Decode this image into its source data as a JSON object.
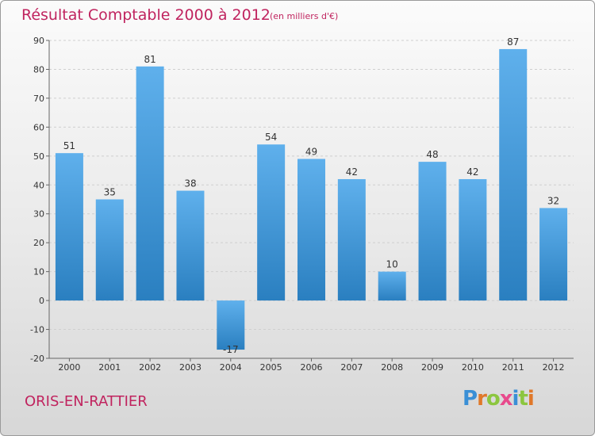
{
  "header": {
    "title": "Résultat Comptable 2000 à 2012",
    "subtitle": "(en milliers d'€)"
  },
  "footer": {
    "commune": "ORIS-EN-RATTIER",
    "logo": {
      "letters": [
        "P",
        "r",
        "o",
        "x",
        "i",
        "t",
        "i"
      ],
      "colors": [
        "#3a8fd6",
        "#e0782a",
        "#8cc63f",
        "#e84a8c",
        "#3a8fd6",
        "#8cc63f",
        "#e0782a"
      ]
    }
  },
  "colors": {
    "accent": "#c0245f",
    "bar_light": "#5fb0ec",
    "bar_dark": "#2a7fc0",
    "grid": "#cfcfcf",
    "axis": "#666666"
  },
  "chart_data": {
    "type": "bar",
    "title": "Résultat Comptable 2000 à 2012",
    "xlabel": "",
    "ylabel": "",
    "categories": [
      "2000",
      "2001",
      "2002",
      "2003",
      "2004",
      "2005",
      "2006",
      "2007",
      "2008",
      "2009",
      "2010",
      "2011",
      "2012"
    ],
    "values": [
      51,
      35,
      81,
      38,
      -17,
      54,
      49,
      42,
      10,
      48,
      42,
      87,
      32
    ],
    "ylim": [
      -20,
      90
    ],
    "yticks": [
      -20,
      -10,
      0,
      10,
      20,
      30,
      40,
      50,
      60,
      70,
      80,
      90
    ],
    "grid": true
  }
}
